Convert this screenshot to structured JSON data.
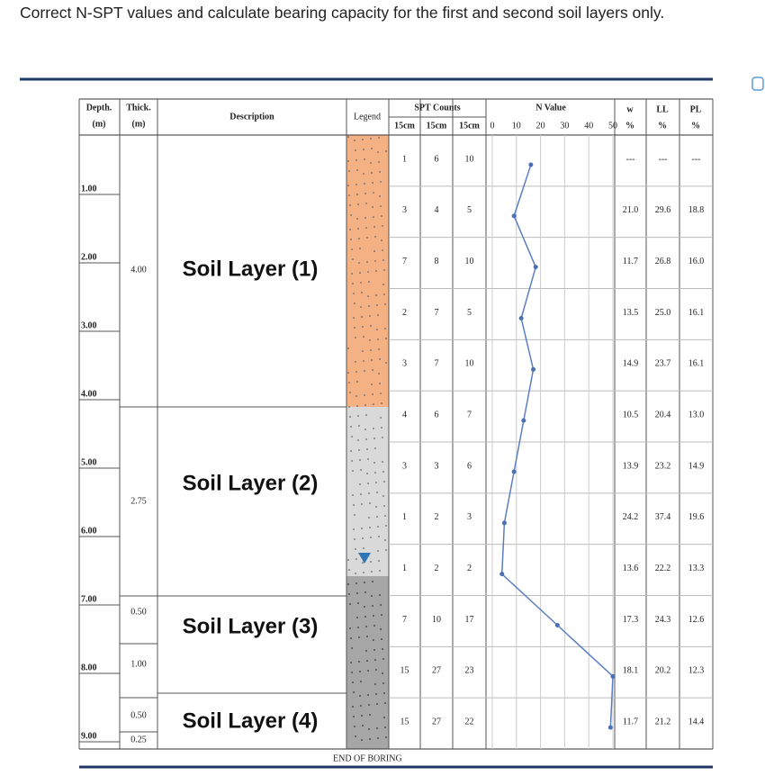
{
  "question": "Correct N-SPT values and calculate bearing capacity for the first and second soil layers only.",
  "log": {
    "headers": {
      "depth": "Depth.",
      "depth_unit": "(m)",
      "thick": "Thick.",
      "thick_unit": "(m)",
      "description": "Description",
      "legend": "Legend",
      "spt": "SPT Counts",
      "spt_cols": [
        "15cm",
        "15cm",
        "15cm"
      ],
      "n_value": "N Value",
      "w": "w",
      "w_unit": "%",
      "ll": "LL",
      "ll_unit": "%",
      "pl": "PL",
      "pl_unit": "%"
    },
    "depths": [
      "1.00",
      "2.00",
      "3.00",
      "4.00",
      "5.00",
      "6.00",
      "7.00",
      "8.00",
      "9.00"
    ],
    "thicknesses": [
      "4.00",
      "2.75",
      "0.50",
      "1.00",
      "0.50",
      "0.25"
    ],
    "layers": [
      "Soil Layer (1)",
      "Soil Layer (2)",
      "Soil Layer (3)",
      "Soil Layer (4)"
    ],
    "spt": [
      [
        1,
        6,
        10
      ],
      [
        3,
        4,
        5
      ],
      [
        7,
        8,
        10
      ],
      [
        2,
        7,
        5
      ],
      [
        3,
        7,
        10
      ],
      [
        4,
        6,
        7
      ],
      [
        3,
        3,
        6
      ],
      [
        1,
        2,
        3
      ],
      [
        1,
        2,
        2
      ],
      [
        7,
        10,
        17
      ],
      [
        15,
        27,
        23
      ],
      [
        15,
        27,
        22
      ]
    ],
    "props": [
      [
        "---",
        "---",
        "---"
      ],
      [
        "21.0",
        "29.6",
        "18.8"
      ],
      [
        "11.7",
        "26.8",
        "16.0"
      ],
      [
        "13.5",
        "25.0",
        "16.1"
      ],
      [
        "14.9",
        "23.7",
        "16.1"
      ],
      [
        "10.5",
        "20.4",
        "13.0"
      ],
      [
        "13.9",
        "23.2",
        "14.9"
      ],
      [
        "24.2",
        "37.4",
        "19.6"
      ],
      [
        "13.6",
        "22.2",
        "13.3"
      ],
      [
        "17.3",
        "24.3",
        "12.6"
      ],
      [
        "18.1",
        "20.2",
        "12.3"
      ],
      [
        "11.7",
        "21.2",
        "14.4"
      ]
    ],
    "n_value": {
      "xlim": [
        0,
        50
      ],
      "ticks": [
        0,
        10,
        20,
        30,
        40,
        50
      ],
      "values": [
        16,
        9,
        18,
        12,
        17,
        13,
        9,
        5,
        4,
        27,
        50,
        49
      ]
    },
    "footer": "END OF BORING"
  }
}
